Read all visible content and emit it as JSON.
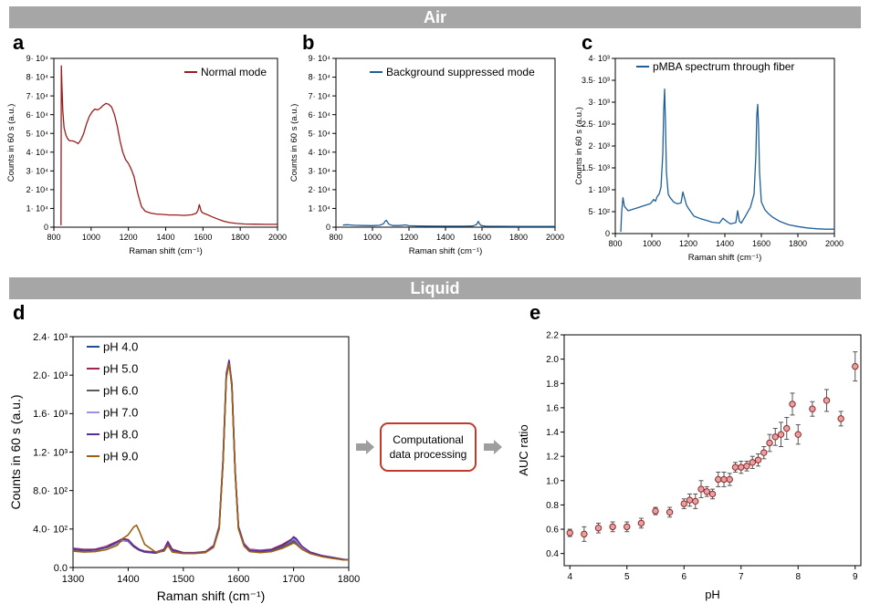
{
  "banners": {
    "air": "Air",
    "liquid": "Liquid"
  },
  "panel_letters": {
    "a": "a",
    "b": "b",
    "c": "c",
    "d": "d",
    "e": "e"
  },
  "process_box": {
    "line1": "Computational",
    "line2": "data processing"
  },
  "colors": {
    "banner": "#a6a6a6",
    "normal_mode": "#9b1c1c",
    "background_suppressed": "#1f5f99",
    "pmba": "#1f5f99",
    "box_border": "#c0392b",
    "arrow": "#9e9e9e",
    "marker_fill": "#e9a0a0",
    "marker_edge": "#8b2a2a"
  },
  "chart_data": [
    {
      "id": "a",
      "type": "line",
      "xlabel": "Raman shift (cm⁻¹)",
      "ylabel": "Counts in 60 s (a.u.)",
      "xlim": [
        800,
        2000
      ],
      "ylim": [
        0,
        90000
      ],
      "xticks": [
        "800",
        "1000",
        "1200",
        "1400",
        "1600",
        "1800",
        "2000"
      ],
      "yticks": [
        "0",
        "1· 10⁴",
        "2· 10⁴",
        "3· 10⁴",
        "4· 10⁴",
        "5· 10⁴",
        "6· 10⁴",
        "7· 10⁴",
        "8· 10⁴",
        "9· 10⁴"
      ],
      "legend_position": "top-right",
      "series": [
        {
          "name": "Normal mode",
          "x": [
            838,
            840,
            843,
            848,
            855,
            865,
            875,
            885,
            900,
            915,
            930,
            945,
            960,
            975,
            990,
            1005,
            1020,
            1035,
            1050,
            1065,
            1080,
            1095,
            1110,
            1125,
            1140,
            1155,
            1170,
            1185,
            1200,
            1215,
            1230,
            1250,
            1270,
            1290,
            1320,
            1350,
            1380,
            1420,
            1460,
            1500,
            1540,
            1565,
            1575,
            1580,
            1585,
            1590,
            1600,
            1620,
            1650,
            1680,
            1710,
            1740,
            1780,
            1820,
            1880,
            1940,
            2000
          ],
          "y": [
            1000,
            86000,
            76000,
            62000,
            53000,
            49000,
            47000,
            46000,
            46000,
            45500,
            44500,
            46500,
            50000,
            55000,
            59000,
            61500,
            63000,
            62500,
            63500,
            65000,
            66000,
            65500,
            64000,
            60000,
            54000,
            46000,
            40000,
            36000,
            34000,
            31000,
            27000,
            18000,
            11000,
            8500,
            7500,
            7000,
            6800,
            6500,
            6500,
            6300,
            6600,
            7500,
            9500,
            12000,
            10500,
            8500,
            7600,
            6800,
            5500,
            4300,
            3200,
            2500,
            2000,
            1700,
            1600,
            1500,
            1500
          ]
        }
      ]
    },
    {
      "id": "b",
      "type": "line",
      "xlabel": "Raman shift (cm⁻¹)",
      "ylabel": "Counts in 60 s (a.u.)",
      "xlim": [
        800,
        2000
      ],
      "ylim": [
        0,
        90000
      ],
      "xticks": [
        "800",
        "1000",
        "1200",
        "1400",
        "1600",
        "1800",
        "2000"
      ],
      "yticks": [
        "0",
        "1· 10⁴",
        "2· 10⁴",
        "3· 10⁴",
        "4· 10⁴",
        "5· 10⁴",
        "6· 10⁴",
        "7· 10⁴",
        "8· 10⁴",
        "9· 10⁴"
      ],
      "legend_position": "top-right",
      "series": [
        {
          "name": "Background suppressed mode",
          "x": [
            838,
            860,
            900,
            950,
            1000,
            1040,
            1060,
            1070,
            1075,
            1080,
            1090,
            1110,
            1150,
            1180,
            1200,
            1250,
            1300,
            1400,
            1500,
            1550,
            1570,
            1580,
            1585,
            1595,
            1620,
            1700,
            1800,
            1900,
            2000
          ],
          "y": [
            1100,
            1300,
            1000,
            900,
            850,
            1000,
            1800,
            3200,
            3700,
            3000,
            1600,
            900,
            900,
            1200,
            800,
            650,
            600,
            550,
            550,
            650,
            1400,
            3100,
            2000,
            900,
            550,
            500,
            450,
            450,
            450
          ]
        }
      ]
    },
    {
      "id": "c",
      "type": "line",
      "xlabel": "Raman shift (cm⁻¹)",
      "ylabel": "Counts in 60 s (a.u.)",
      "xlim": [
        800,
        2000
      ],
      "ylim": [
        0,
        4000
      ],
      "xticks": [
        "800",
        "1000",
        "1200",
        "1400",
        "1600",
        "1800",
        "2000"
      ],
      "yticks": [
        "0",
        "5· 10²",
        "1· 10³",
        "1.5· 10³",
        "2· 10³",
        "2.5· 10³",
        "3· 10³",
        "3.5· 10³",
        "4· 10³"
      ],
      "legend_position": "top-right",
      "series": [
        {
          "name": "pMBA spectrum through fiber",
          "x": [
            830,
            835,
            842,
            850,
            870,
            900,
            930,
            960,
            990,
            1000,
            1010,
            1020,
            1030,
            1040,
            1050,
            1060,
            1065,
            1070,
            1075,
            1080,
            1090,
            1100,
            1120,
            1140,
            1160,
            1170,
            1180,
            1190,
            1200,
            1230,
            1260,
            1300,
            1330,
            1370,
            1390,
            1410,
            1430,
            1460,
            1470,
            1480,
            1490,
            1510,
            1540,
            1560,
            1570,
            1575,
            1580,
            1585,
            1590,
            1600,
            1620,
            1640,
            1660,
            1700,
            1750,
            1800,
            1850,
            1900,
            1950,
            2000
          ],
          "y": [
            40,
            500,
            820,
            620,
            520,
            560,
            600,
            640,
            680,
            720,
            780,
            740,
            850,
            900,
            1050,
            1800,
            2800,
            3300,
            2500,
            1400,
            900,
            820,
            720,
            680,
            700,
            950,
            800,
            650,
            580,
            400,
            350,
            300,
            260,
            240,
            350,
            280,
            220,
            250,
            520,
            280,
            240,
            380,
            600,
            900,
            1800,
            2700,
            2950,
            2400,
            1400,
            720,
            540,
            450,
            380,
            280,
            200,
            160,
            130,
            110,
            100,
            100
          ]
        }
      ]
    },
    {
      "id": "d",
      "type": "line",
      "xlabel": "Raman shift (cm⁻¹)",
      "ylabel": "Counts in 60 s (a.u.)",
      "xlim": [
        1300,
        1800
      ],
      "ylim": [
        0,
        2400
      ],
      "xticks": [
        "1300",
        "1400",
        "1500",
        "1600",
        "1700",
        "1800"
      ],
      "yticks": [
        "0.0",
        "4.0· 10²",
        "8.0· 10²",
        "1.2· 10³",
        "1.6· 10³",
        "2.0· 10³",
        "2.4· 10³"
      ],
      "legend_position": "top-left",
      "x": [
        1300,
        1320,
        1340,
        1360,
        1380,
        1390,
        1400,
        1410,
        1415,
        1420,
        1430,
        1450,
        1465,
        1472,
        1480,
        1500,
        1520,
        1540,
        1555,
        1565,
        1572,
        1578,
        1583,
        1588,
        1594,
        1600,
        1610,
        1620,
        1640,
        1660,
        1680,
        1695,
        1700,
        1705,
        1715,
        1730,
        1750,
        1770,
        1790,
        1800
      ],
      "series": [
        {
          "name": "pH 4.0",
          "color": "#1f4e99",
          "values": [
            190,
            180,
            185,
            210,
            260,
            290,
            280,
            220,
            200,
            180,
            160,
            150,
            180,
            260,
            180,
            150,
            150,
            160,
            220,
            420,
            1100,
            2000,
            2150,
            1900,
            1000,
            420,
            240,
            180,
            170,
            180,
            220,
            260,
            280,
            260,
            200,
            150,
            120,
            100,
            80,
            80
          ]
        },
        {
          "name": "pH 5.0",
          "color": "#a4234a",
          "values": [
            200,
            190,
            190,
            220,
            270,
            300,
            290,
            230,
            210,
            190,
            170,
            160,
            190,
            270,
            190,
            155,
            155,
            165,
            230,
            430,
            1120,
            2020,
            2150,
            1920,
            1010,
            430,
            250,
            190,
            180,
            190,
            240,
            290,
            310,
            290,
            220,
            160,
            125,
            105,
            85,
            80
          ]
        },
        {
          "name": "pH 6.0",
          "color": "#5a5a5a",
          "values": [
            185,
            175,
            180,
            205,
            250,
            280,
            270,
            215,
            195,
            180,
            160,
            150,
            175,
            255,
            175,
            150,
            150,
            160,
            215,
            410,
            1090,
            1990,
            2140,
            1890,
            990,
            410,
            235,
            175,
            165,
            175,
            215,
            255,
            270,
            255,
            195,
            150,
            120,
            100,
            80,
            80
          ]
        },
        {
          "name": "pH 7.0",
          "color": "#9b8fe6",
          "values": [
            195,
            185,
            185,
            215,
            255,
            285,
            275,
            225,
            205,
            185,
            165,
            155,
            185,
            265,
            185,
            150,
            150,
            160,
            225,
            425,
            1110,
            2010,
            2160,
            1910,
            1000,
            425,
            245,
            185,
            175,
            185,
            230,
            275,
            295,
            275,
            210,
            155,
            120,
            100,
            80,
            80
          ]
        },
        {
          "name": "pH 8.0",
          "color": "#5b2ca0",
          "values": [
            195,
            180,
            185,
            210,
            265,
            295,
            285,
            225,
            205,
            185,
            165,
            155,
            185,
            265,
            185,
            150,
            150,
            160,
            220,
            420,
            1100,
            2000,
            2150,
            1900,
            1000,
            420,
            240,
            180,
            170,
            185,
            230,
            285,
            320,
            300,
            220,
            160,
            125,
            105,
            85,
            80
          ]
        },
        {
          "name": "pH 9.0",
          "color": "#9c5f12",
          "values": [
            170,
            160,
            165,
            185,
            230,
            300,
            340,
            420,
            440,
            380,
            240,
            160,
            170,
            230,
            160,
            145,
            145,
            155,
            210,
            400,
            1080,
            1970,
            2120,
            1880,
            980,
            400,
            225,
            165,
            155,
            165,
            200,
            240,
            255,
            240,
            190,
            145,
            115,
            95,
            80,
            80
          ]
        }
      ]
    },
    {
      "id": "e",
      "type": "scatter",
      "xlabel": "pH",
      "ylabel": "AUC ratio",
      "xlim": [
        3.9,
        9.1
      ],
      "ylim": [
        0.3,
        2.2
      ],
      "xticks": [
        "4",
        "5",
        "6",
        "7",
        "8",
        "9"
      ],
      "yticks": [
        "0.4",
        "0.6",
        "0.8",
        "1.0",
        "1.2",
        "1.4",
        "1.6",
        "1.8",
        "2.0",
        "2.2"
      ],
      "x": [
        4.0,
        4.25,
        4.5,
        4.75,
        5.0,
        5.25,
        5.5,
        5.75,
        6.0,
        6.1,
        6.2,
        6.3,
        6.4,
        6.5,
        6.6,
        6.7,
        6.8,
        6.9,
        7.0,
        7.1,
        7.2,
        7.3,
        7.4,
        7.5,
        7.6,
        7.7,
        7.8,
        7.9,
        8.0,
        8.25,
        8.5,
        8.75,
        9.0
      ],
      "y": [
        0.57,
        0.56,
        0.61,
        0.62,
        0.62,
        0.65,
        0.75,
        0.74,
        0.81,
        0.84,
        0.83,
        0.93,
        0.91,
        0.89,
        1.01,
        1.01,
        1.01,
        1.11,
        1.11,
        1.12,
        1.15,
        1.17,
        1.23,
        1.31,
        1.36,
        1.38,
        1.43,
        1.63,
        1.38,
        1.59,
        1.66,
        1.51,
        1.94
      ],
      "yerr": [
        0.03,
        0.06,
        0.04,
        0.04,
        0.04,
        0.04,
        0.03,
        0.04,
        0.04,
        0.05,
        0.06,
        0.07,
        0.04,
        0.04,
        0.06,
        0.06,
        0.05,
        0.04,
        0.05,
        0.04,
        0.05,
        0.05,
        0.05,
        0.07,
        0.07,
        0.1,
        0.09,
        0.09,
        0.08,
        0.06,
        0.09,
        0.06,
        0.12
      ]
    }
  ]
}
